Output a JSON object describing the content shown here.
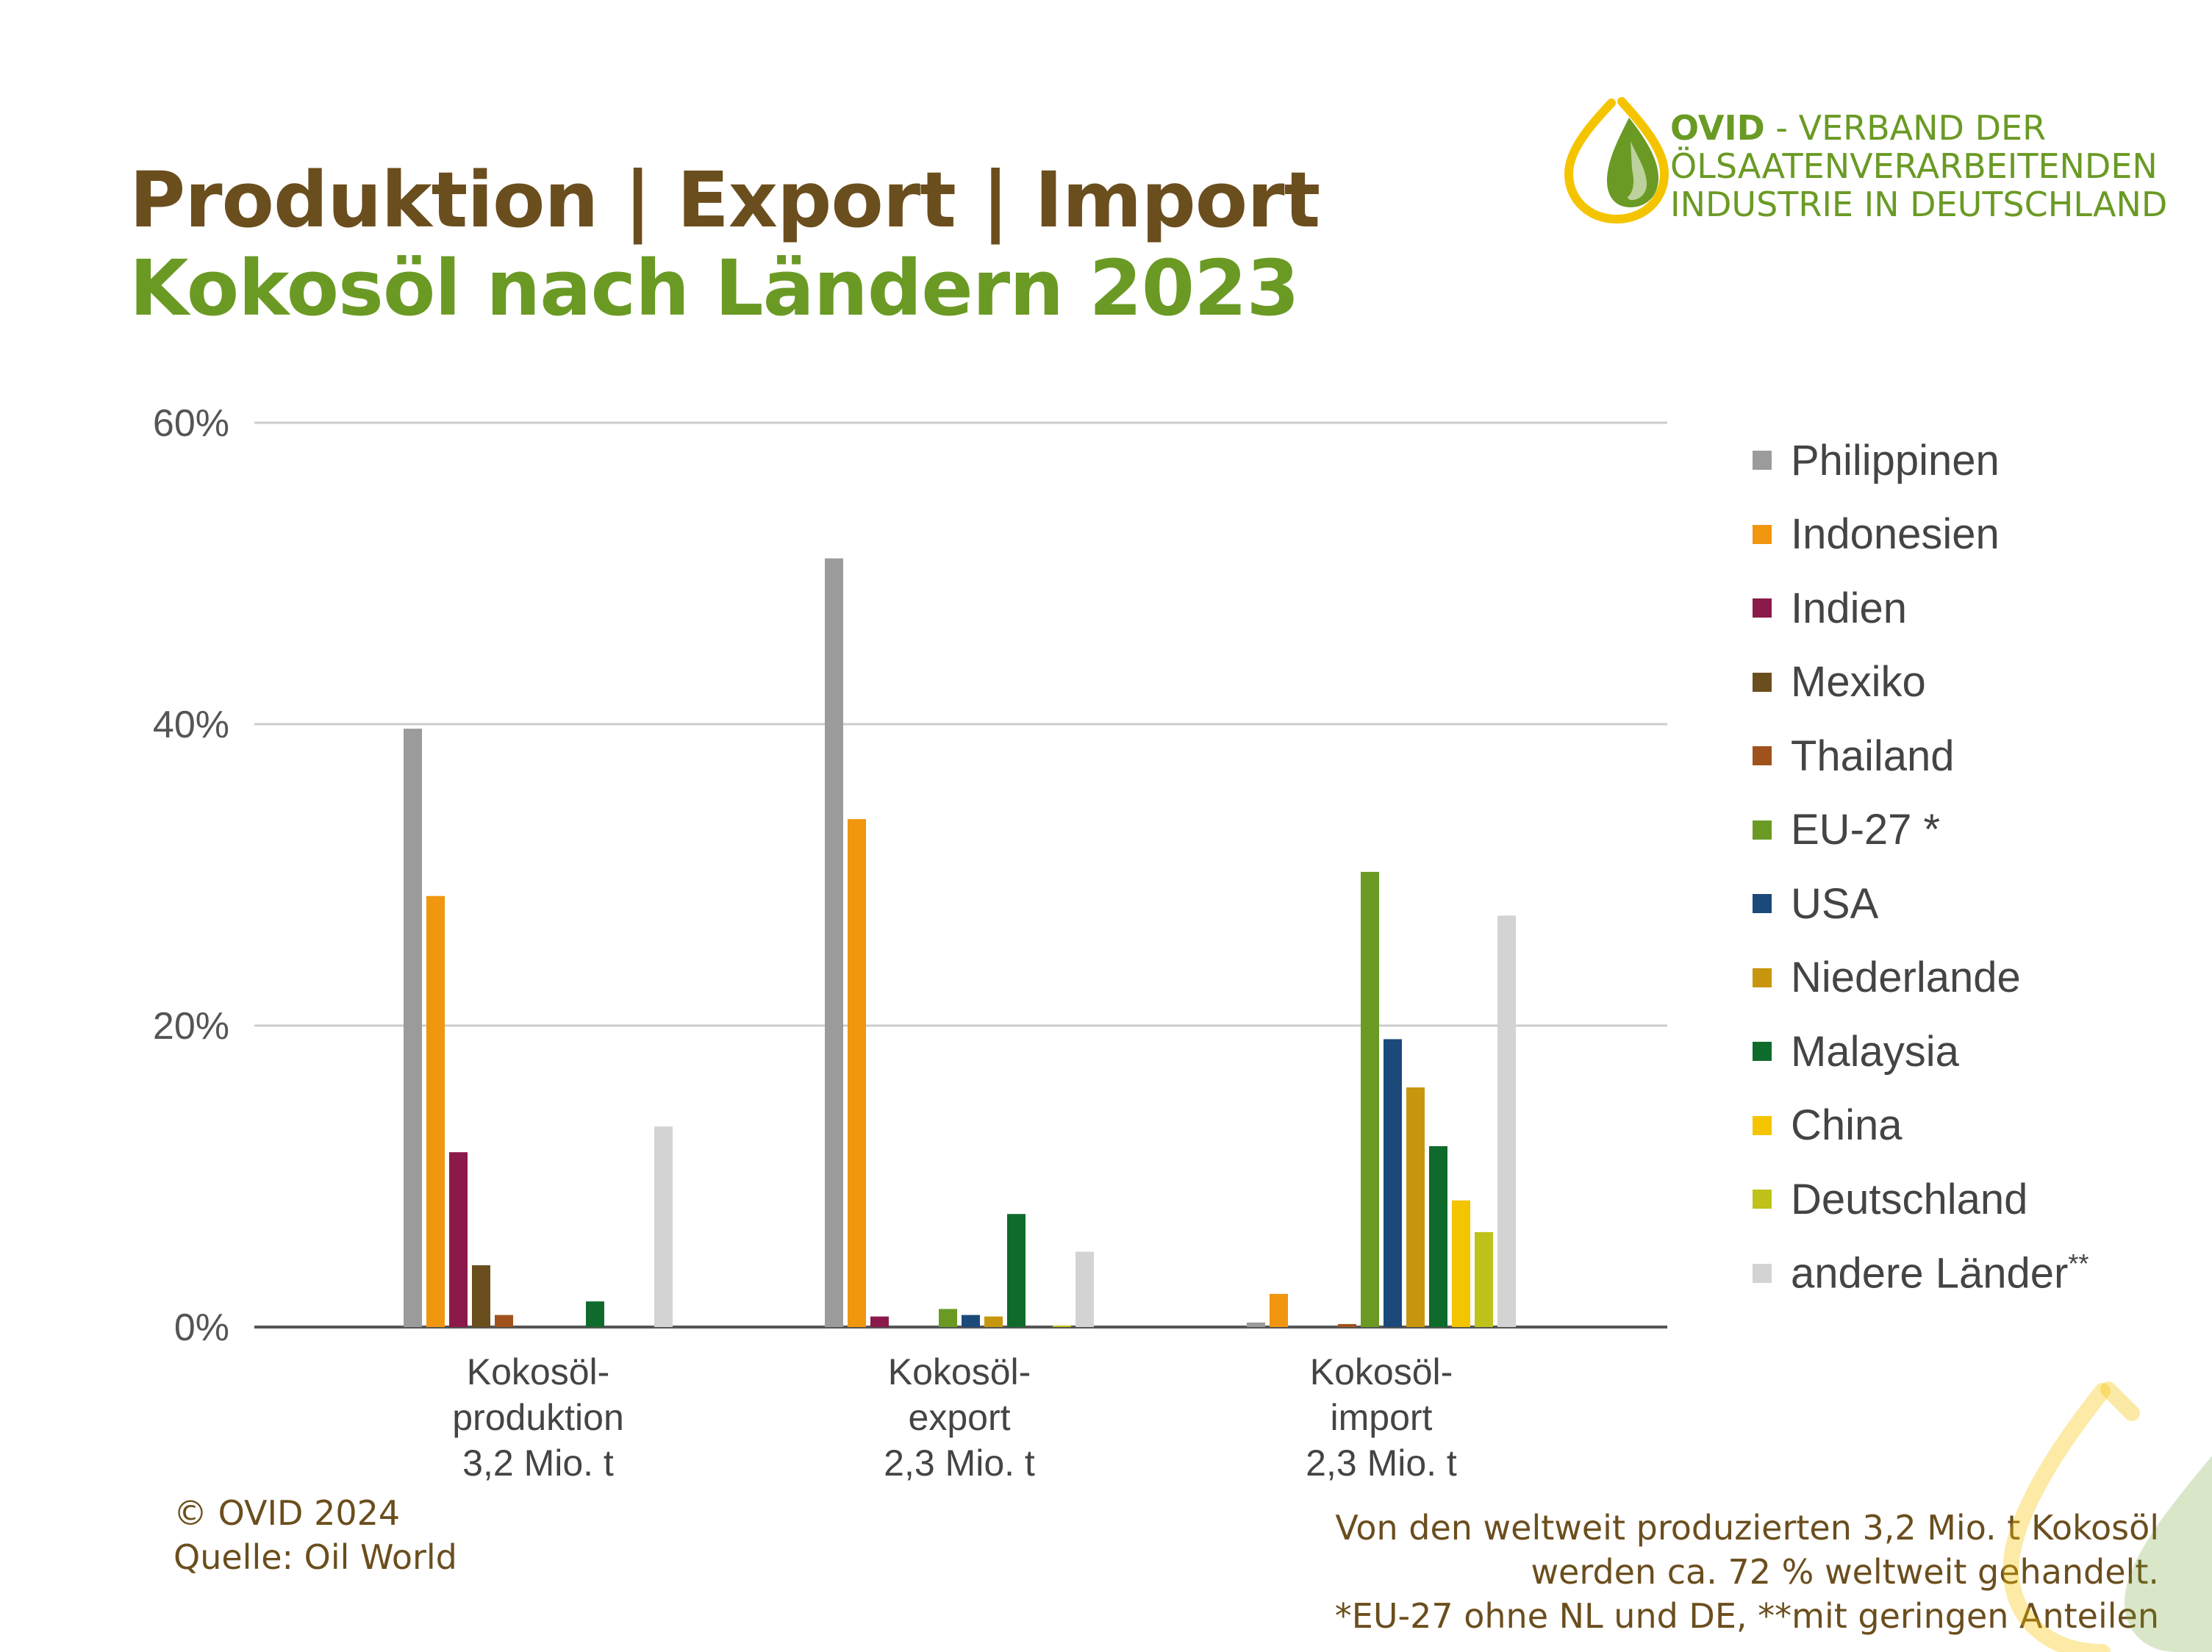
{
  "header": {
    "title_line1": "Produktion | Export | Import",
    "title_line2": "Kokosöl nach Ländern 2023"
  },
  "organization": {
    "abbr": "OVID",
    "name_line1": " - VERBAND DER",
    "name_line2": "ÖLSAATENVERARBEITENDEN",
    "name_line3": "INDUSTRIE IN DEUTSCHLAND"
  },
  "colors": {
    "brown": "#6b4e1e",
    "green": "#6a9a24",
    "gridline": "#cccccc",
    "axis": "#555555",
    "logo_yellow": "#f5c400"
  },
  "chart_data": {
    "type": "bar",
    "categories": [
      [
        "Kokosöl-",
        "produktion",
        "3,2 Mio. t"
      ],
      [
        "Kokosöl-",
        "export",
        "2,3 Mio. t"
      ],
      [
        "Kokosöl-",
        "import",
        "2,3 Mio. t"
      ]
    ],
    "yticks": [
      "0%",
      "20%",
      "40%",
      "60%"
    ],
    "ylim": [
      0,
      60
    ],
    "unit": "%",
    "grid": true,
    "legend_position": "right",
    "series": [
      {
        "name": "Philippinen",
        "color": "#9b9b9b",
        "values": [
          39.7,
          51.0,
          0.3
        ]
      },
      {
        "name": "Indonesien",
        "color": "#f0960f",
        "values": [
          28.6,
          33.7,
          2.2
        ]
      },
      {
        "name": "Indien",
        "color": "#8b1a4a",
        "values": [
          11.6,
          0.7,
          0.0
        ]
      },
      {
        "name": "Mexiko",
        "color": "#6b4e1e",
        "values": [
          4.1,
          0.0,
          0.0
        ]
      },
      {
        "name": "Thailand",
        "color": "#a0521d",
        "values": [
          0.8,
          0.0,
          0.2
        ]
      },
      {
        "name": "EU-27 *",
        "color": "#6a9a24",
        "values": [
          0.0,
          1.2,
          30.2
        ]
      },
      {
        "name": "USA",
        "color": "#1b4a7a",
        "values": [
          0.0,
          0.8,
          19.1
        ]
      },
      {
        "name": "Niederlande",
        "color": "#c8960e",
        "values": [
          0.0,
          0.7,
          15.9
        ]
      },
      {
        "name": "Malaysia",
        "color": "#0f6b2b",
        "values": [
          1.7,
          7.5,
          12.0
        ]
      },
      {
        "name": "China",
        "color": "#f5c400",
        "values": [
          0.0,
          0.0,
          8.4
        ]
      },
      {
        "name": "Deutschland",
        "color": "#bfc21a",
        "values": [
          0.0,
          0.1,
          6.3
        ]
      },
      {
        "name": "andere Länder",
        "name_suffix": "**",
        "color": "#d3d3d3",
        "values": [
          13.3,
          5.0,
          27.3
        ]
      }
    ]
  },
  "footer": {
    "copyright": "© OVID 2024",
    "source": "Quelle: Oil World",
    "note_line1": "Von den weltweit produzierten 3,2 Mio. t Kokosöl",
    "note_line2": "werden ca.  72 % weltweit gehandelt.",
    "note_line3": "*EU-27 ohne NL und DE, **mit geringen Anteilen"
  }
}
